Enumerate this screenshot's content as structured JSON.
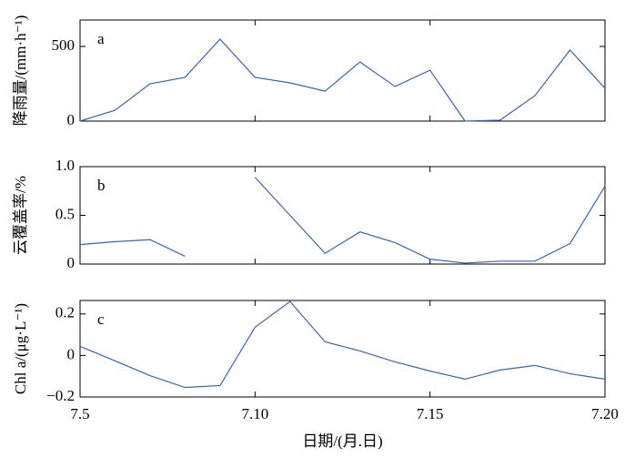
{
  "chart_data": [
    {
      "type": "line",
      "annotation": "a",
      "ylabel": "降雨量/(mm·h⁻¹)",
      "x": [
        5,
        6,
        7,
        8,
        9,
        10,
        11,
        12,
        13,
        14,
        15,
        16,
        17,
        18,
        19,
        20
      ],
      "series": [
        {
          "color": "#3a64a8",
          "values": [
            0,
            73,
            250,
            293,
            549,
            293,
            256,
            201,
            396,
            232,
            341,
            0,
            6,
            171,
            476,
            220
          ]
        }
      ],
      "ylim": [
        0,
        677
      ],
      "yticks": [
        0,
        500
      ]
    },
    {
      "type": "line",
      "annotation": "b",
      "ylabel": "云覆盖率/%",
      "x": [
        5,
        6,
        7,
        8,
        9,
        10,
        11,
        12,
        13,
        14,
        15,
        16,
        17,
        18,
        19,
        20
      ],
      "series": [
        {
          "color": "#3a64a8",
          "values": [
            0.2,
            0.23,
            0.25,
            0.08,
            null,
            0.89,
            0.5,
            0.11,
            0.33,
            0.22,
            0.05,
            0.01,
            0.03,
            0.03,
            0.21,
            0.8
          ]
        }
      ],
      "ylim": [
        0,
        1
      ],
      "yticks": [
        0,
        0.5,
        {
          "value": 1,
          "label": "1.0"
        }
      ]
    },
    {
      "type": "line",
      "annotation": "c",
      "ylabel": "Chl a/(μg·L⁻¹)",
      "xlabel": "日期/(月.日)",
      "x": [
        5,
        6,
        7,
        8,
        9,
        10,
        11,
        12,
        13,
        14,
        15,
        16,
        17,
        18,
        19,
        20
      ],
      "series": [
        {
          "color": "#3a64a8",
          "values": [
            0.044,
            -0.026,
            -0.097,
            -0.154,
            -0.145,
            0.136,
            0.26,
            0.066,
            0.022,
            -0.031,
            -0.075,
            -0.114,
            -0.07,
            -0.048,
            -0.088,
            -0.114
          ]
        }
      ],
      "ylim": [
        -0.2,
        0.265
      ],
      "yticks": [
        {
          "value": -0.2,
          "label": "−0.2"
        },
        0,
        0.2
      ],
      "xlim": [
        5,
        20
      ],
      "xticks": [
        {
          "value": 5,
          "label": "7.5"
        },
        {
          "value": 10,
          "label": "7.10"
        },
        {
          "value": 15,
          "label": "7.15"
        },
        {
          "value": 20,
          "label": "7.20"
        }
      ]
    }
  ]
}
